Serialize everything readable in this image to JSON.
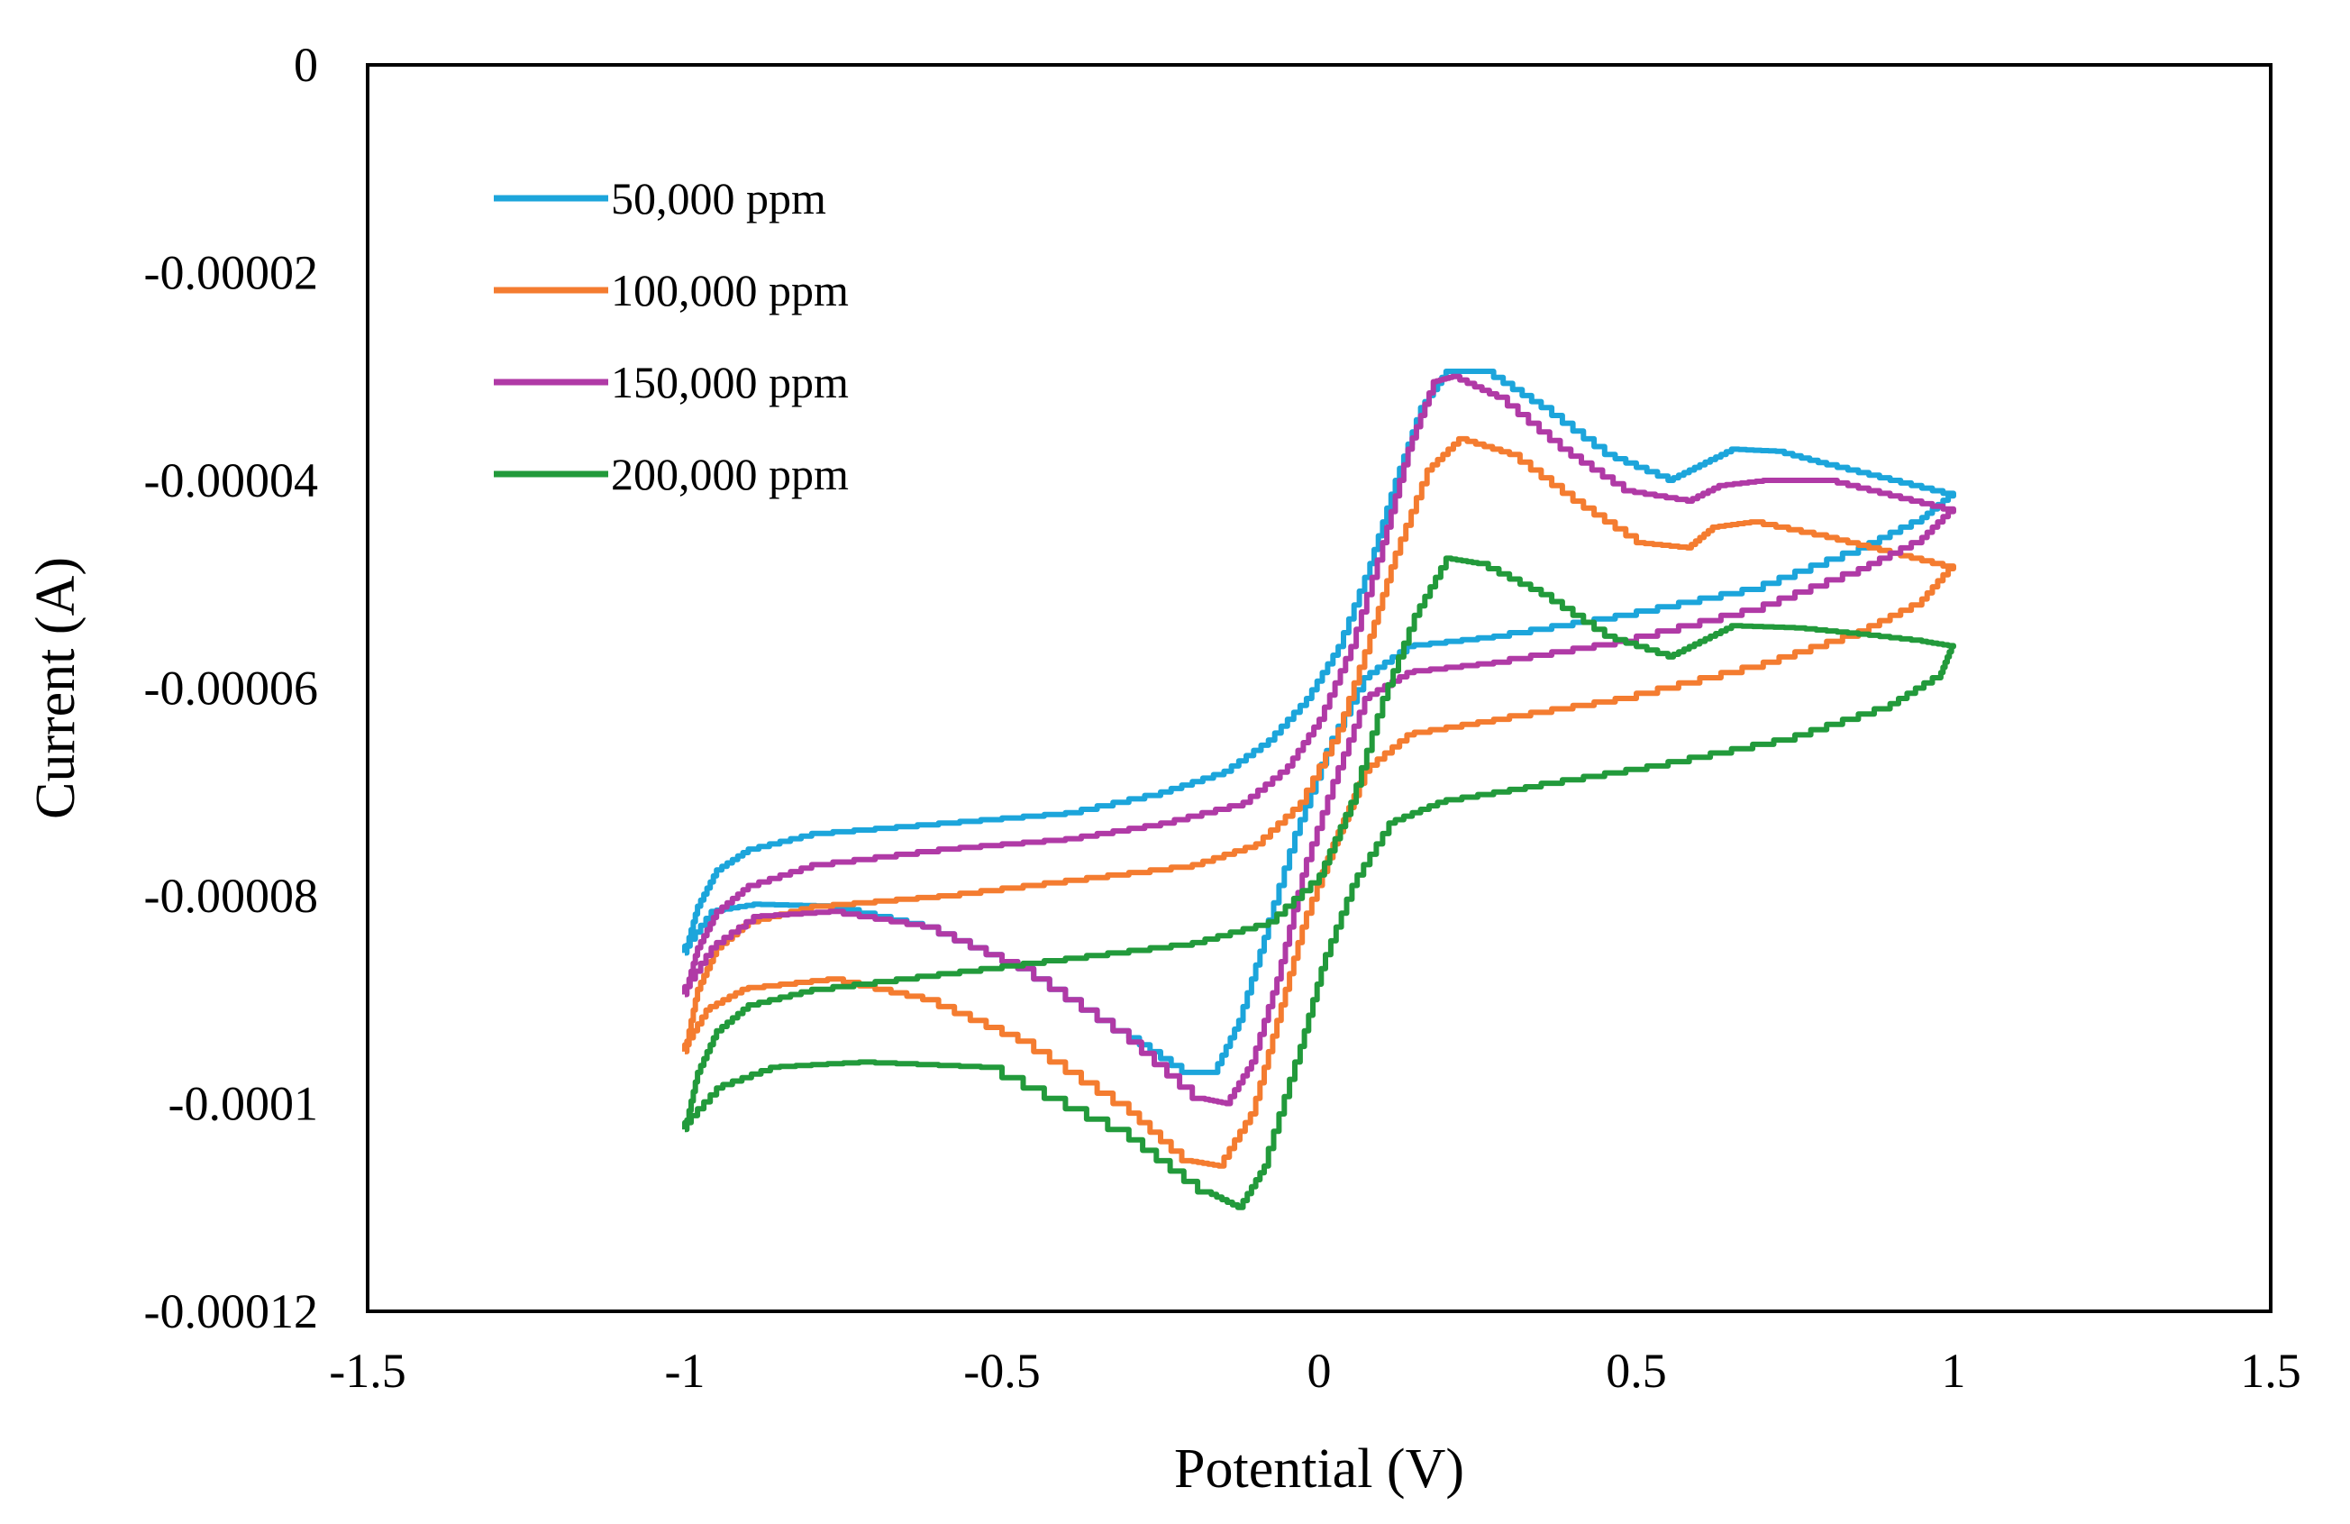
{
  "chart_data": {
    "type": "line",
    "title": "",
    "xlabel": "Potential (V)",
    "ylabel": "Current (A)",
    "xlim": [
      -1.5,
      1.5
    ],
    "ylim": [
      -0.00012,
      0
    ],
    "x_ticks": [
      -1.5,
      -1,
      -0.5,
      0,
      0.5,
      1,
      1.5
    ],
    "x_tick_labels": [
      "-1.5",
      "-1",
      "-0.5",
      "0",
      "0.5",
      "1",
      "1.5"
    ],
    "y_ticks": [
      0,
      -2e-05,
      -4e-05,
      -6e-05,
      -8e-05,
      -0.0001,
      -0.00012
    ],
    "y_tick_labels": [
      "0",
      "-0.00002",
      "-0.00004",
      "-0.00006",
      "-0.00008",
      "-0.0001",
      "-0.00012"
    ],
    "grid": false,
    "legend_position": "top-left",
    "series": [
      {
        "name": "50,000 ppm",
        "color": "#1CA5DB",
        "points": [
          [
            -1.0,
            -8.55e-05
          ],
          [
            -0.98,
            -8.1e-05
          ],
          [
            -0.95,
            -7.75e-05
          ],
          [
            -0.9,
            -7.55e-05
          ],
          [
            -0.8,
            -7.4e-05
          ],
          [
            -0.6,
            -7.3e-05
          ],
          [
            -0.4,
            -7.2e-05
          ],
          [
            -0.25,
            -7e-05
          ],
          [
            -0.15,
            -6.8e-05
          ],
          [
            -0.08,
            -6.5e-05
          ],
          [
            -0.02,
            -6.1e-05
          ],
          [
            0.03,
            -5.6e-05
          ],
          [
            0.08,
            -4.8e-05
          ],
          [
            0.12,
            -4e-05
          ],
          [
            0.16,
            -3.3e-05
          ],
          [
            0.2,
            -2.95e-05
          ],
          [
            0.26,
            -2.95e-05
          ],
          [
            0.35,
            -3.3e-05
          ],
          [
            0.45,
            -3.75e-05
          ],
          [
            0.55,
            -4e-05
          ],
          [
            0.6,
            -3.85e-05
          ],
          [
            0.65,
            -3.7e-05
          ],
          [
            0.72,
            -3.72e-05
          ],
          [
            0.8,
            -3.85e-05
          ],
          [
            0.9,
            -4e-05
          ],
          [
            1.0,
            -4.15e-05
          ],
          [
            0.95,
            -4.4e-05
          ],
          [
            0.85,
            -4.7e-05
          ],
          [
            0.7,
            -5.05e-05
          ],
          [
            0.5,
            -5.3e-05
          ],
          [
            0.3,
            -5.5e-05
          ],
          [
            0.15,
            -5.6e-05
          ],
          [
            0.08,
            -5.9e-05
          ],
          [
            0.02,
            -6.6e-05
          ],
          [
            -0.03,
            -7.4e-05
          ],
          [
            -0.08,
            -8.4e-05
          ],
          [
            -0.12,
            -9.2e-05
          ],
          [
            -0.16,
            -9.7e-05
          ],
          [
            -0.2,
            -9.7e-05
          ],
          [
            -0.3,
            -9.3e-05
          ],
          [
            -0.45,
            -8.7e-05
          ],
          [
            -0.6,
            -8.3e-05
          ],
          [
            -0.75,
            -8.1e-05
          ],
          [
            -0.88,
            -8.08e-05
          ],
          [
            -0.95,
            -8.15e-05
          ],
          [
            -1.0,
            -8.55e-05
          ]
        ]
      },
      {
        "name": "100,000 ppm",
        "color": "#F47C30",
        "points": [
          [
            -1.0,
            -9.5e-05
          ],
          [
            -0.98,
            -8.9e-05
          ],
          [
            -0.95,
            -8.5e-05
          ],
          [
            -0.9,
            -8.25e-05
          ],
          [
            -0.8,
            -8.1e-05
          ],
          [
            -0.6,
            -8e-05
          ],
          [
            -0.4,
            -7.85e-05
          ],
          [
            -0.2,
            -7.7e-05
          ],
          [
            -0.1,
            -7.5e-05
          ],
          [
            -0.03,
            -7.1e-05
          ],
          [
            0.03,
            -6.4e-05
          ],
          [
            0.08,
            -5.5e-05
          ],
          [
            0.12,
            -4.7e-05
          ],
          [
            0.17,
            -3.9e-05
          ],
          [
            0.22,
            -3.6e-05
          ],
          [
            0.3,
            -3.75e-05
          ],
          [
            0.4,
            -4.2e-05
          ],
          [
            0.5,
            -4.6e-05
          ],
          [
            0.58,
            -4.65e-05
          ],
          [
            0.62,
            -4.45e-05
          ],
          [
            0.68,
            -4.4e-05
          ],
          [
            0.8,
            -4.55e-05
          ],
          [
            0.9,
            -4.7e-05
          ],
          [
            1.0,
            -4.85e-05
          ],
          [
            0.95,
            -5.2e-05
          ],
          [
            0.85,
            -5.5e-05
          ],
          [
            0.7,
            -5.8e-05
          ],
          [
            0.5,
            -6.1e-05
          ],
          [
            0.3,
            -6.3e-05
          ],
          [
            0.15,
            -6.45e-05
          ],
          [
            0.08,
            -6.8e-05
          ],
          [
            0.03,
            -7.5e-05
          ],
          [
            -0.02,
            -8.3e-05
          ],
          [
            -0.06,
            -9.2e-05
          ],
          [
            -0.1,
            -0.000101
          ],
          [
            -0.15,
            -0.000106
          ],
          [
            -0.2,
            -0.0001055
          ],
          [
            -0.3,
            -0.0001
          ],
          [
            -0.45,
            -9.4e-05
          ],
          [
            -0.6,
            -9e-05
          ],
          [
            -0.75,
            -8.8e-05
          ],
          [
            -0.9,
            -8.9e-05
          ],
          [
            -0.96,
            -9.1e-05
          ],
          [
            -1.0,
            -9.5e-05
          ]
        ]
      },
      {
        "name": "150,000 ppm",
        "color": "#B03AA6",
        "points": [
          [
            -1.0,
            -8.95e-05
          ],
          [
            -0.98,
            -8.5e-05
          ],
          [
            -0.95,
            -8.15e-05
          ],
          [
            -0.9,
            -7.9e-05
          ],
          [
            -0.8,
            -7.7e-05
          ],
          [
            -0.6,
            -7.55e-05
          ],
          [
            -0.4,
            -7.45e-05
          ],
          [
            -0.25,
            -7.3e-05
          ],
          [
            -0.12,
            -7.1e-05
          ],
          [
            -0.05,
            -6.75e-05
          ],
          [
            0.0,
            -6.3e-05
          ],
          [
            0.05,
            -5.6e-05
          ],
          [
            0.1,
            -4.6e-05
          ],
          [
            0.14,
            -3.7e-05
          ],
          [
            0.18,
            -3.05e-05
          ],
          [
            0.21,
            -3e-05
          ],
          [
            0.28,
            -3.2e-05
          ],
          [
            0.38,
            -3.7e-05
          ],
          [
            0.48,
            -4.1e-05
          ],
          [
            0.58,
            -4.2e-05
          ],
          [
            0.63,
            -4.05e-05
          ],
          [
            0.7,
            -4e-05
          ],
          [
            0.8,
            -4e-05
          ],
          [
            0.9,
            -4.15e-05
          ],
          [
            1.0,
            -4.3e-05
          ],
          [
            0.95,
            -4.6e-05
          ],
          [
            0.85,
            -4.9e-05
          ],
          [
            0.7,
            -5.25e-05
          ],
          [
            0.5,
            -5.55e-05
          ],
          [
            0.3,
            -5.75e-05
          ],
          [
            0.15,
            -5.85e-05
          ],
          [
            0.08,
            -6.1e-05
          ],
          [
            0.03,
            -6.9e-05
          ],
          [
            -0.02,
            -7.8e-05
          ],
          [
            -0.06,
            -8.8e-05
          ],
          [
            -0.1,
            -9.6e-05
          ],
          [
            -0.14,
            -0.0001
          ],
          [
            -0.18,
            -9.95e-05
          ],
          [
            -0.3,
            -9.3e-05
          ],
          [
            -0.45,
            -8.7e-05
          ],
          [
            -0.6,
            -8.3e-05
          ],
          [
            -0.75,
            -8.15e-05
          ],
          [
            -0.88,
            -8.2e-05
          ],
          [
            -0.95,
            -8.5e-05
          ],
          [
            -1.0,
            -8.95e-05
          ]
        ]
      },
      {
        "name": "200,000 ppm",
        "color": "#229A3B",
        "points": [
          [
            -1.0,
            -0.0001025
          ],
          [
            -0.98,
            -9.7e-05
          ],
          [
            -0.95,
            -9.3e-05
          ],
          [
            -0.9,
            -9.05e-05
          ],
          [
            -0.8,
            -8.9e-05
          ],
          [
            -0.6,
            -8.75e-05
          ],
          [
            -0.4,
            -8.6e-05
          ],
          [
            -0.2,
            -8.45e-05
          ],
          [
            -0.08,
            -8.25e-05
          ],
          [
            0.0,
            -7.8e-05
          ],
          [
            0.05,
            -7.1e-05
          ],
          [
            0.1,
            -6.1e-05
          ],
          [
            0.15,
            -5.3e-05
          ],
          [
            0.2,
            -4.75e-05
          ],
          [
            0.25,
            -4.8e-05
          ],
          [
            0.35,
            -5.1e-05
          ],
          [
            0.45,
            -5.5e-05
          ],
          [
            0.55,
            -5.7e-05
          ],
          [
            0.6,
            -5.55e-05
          ],
          [
            0.65,
            -5.4e-05
          ],
          [
            0.75,
            -5.42e-05
          ],
          [
            0.85,
            -5.48e-05
          ],
          [
            0.95,
            -5.55e-05
          ],
          [
            1.0,
            -5.6e-05
          ],
          [
            0.98,
            -5.9e-05
          ],
          [
            0.9,
            -6.2e-05
          ],
          [
            0.75,
            -6.5e-05
          ],
          [
            0.55,
            -6.75e-05
          ],
          [
            0.35,
            -6.95e-05
          ],
          [
            0.2,
            -7.1e-05
          ],
          [
            0.12,
            -7.3e-05
          ],
          [
            0.06,
            -7.9e-05
          ],
          [
            0.01,
            -8.7e-05
          ],
          [
            -0.03,
            -9.6e-05
          ],
          [
            -0.08,
            -0.000106
          ],
          [
            -0.12,
            -0.00011
          ],
          [
            -0.17,
            -0.0001085
          ],
          [
            -0.3,
            -0.0001025
          ],
          [
            -0.5,
            -9.65e-05
          ],
          [
            -0.7,
            -9.6e-05
          ],
          [
            -0.85,
            -9.65e-05
          ],
          [
            -0.94,
            -9.85e-05
          ],
          [
            -1.0,
            -0.0001025
          ]
        ]
      }
    ]
  }
}
